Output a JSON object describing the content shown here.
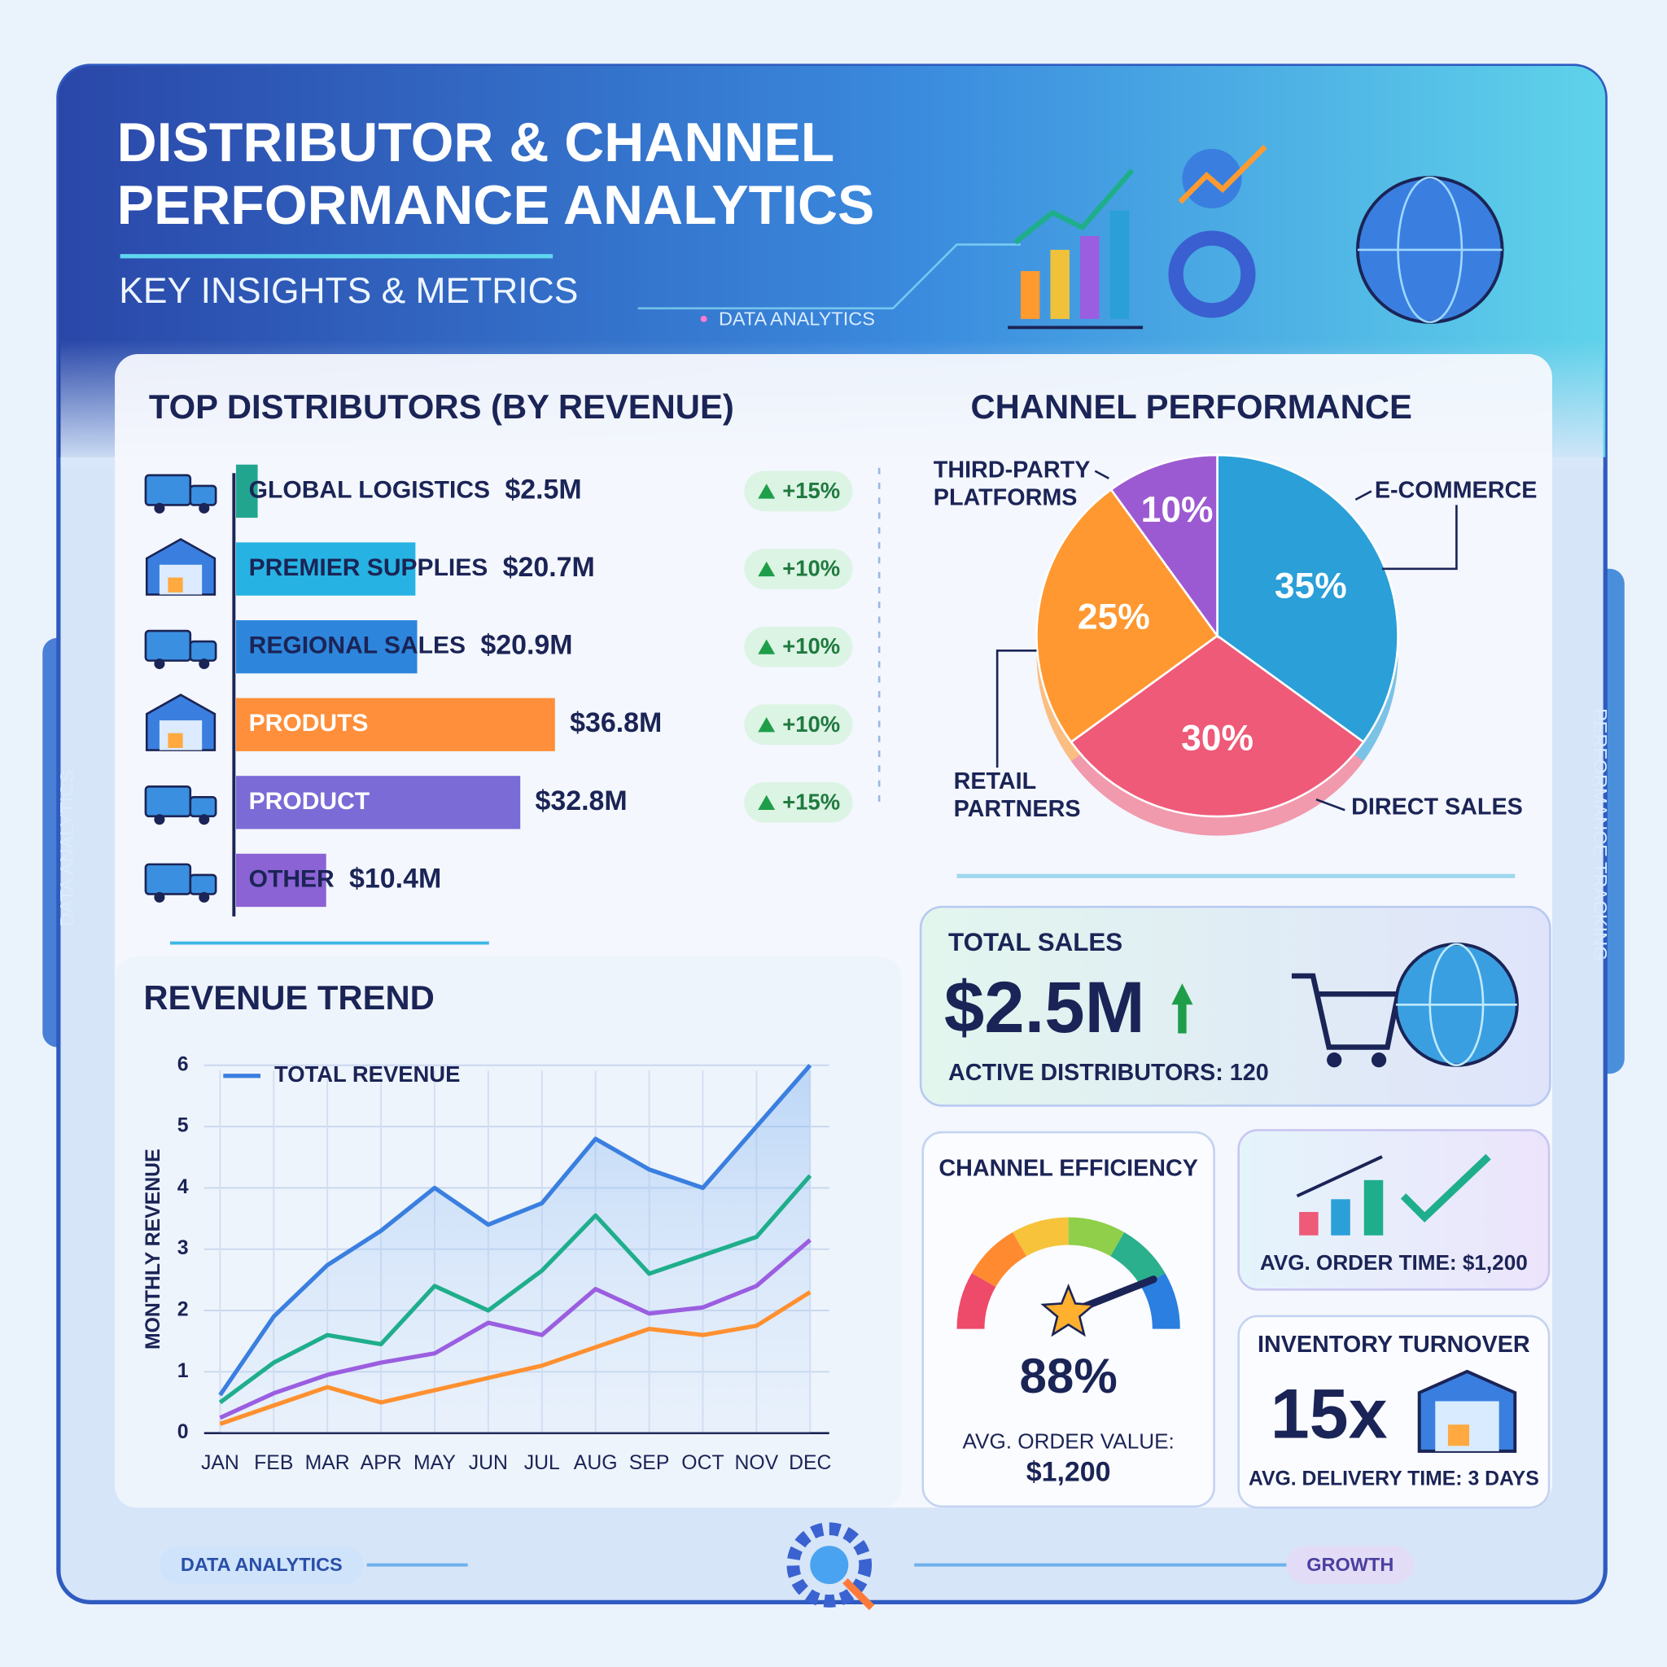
{
  "header": {
    "title_lines": [
      "DISTRIBUTOR & CHANNEL",
      "PERFORMANCE ANALYTICS"
    ],
    "subtitle": "KEY INSIGHTS & METRICS",
    "tag": "DATA ANALYTICS"
  },
  "side_labels": {
    "left": "DATA ANALYTICS",
    "right": "PERFORMANCE TRACKING"
  },
  "footer": {
    "left_pill": "DATA ANALYTICS",
    "right_pill": "GROWTH"
  },
  "chart_data": [
    {
      "type": "bar",
      "title": "TOP DISTRIBUTORS (BY REVENUE)",
      "orientation": "horizontal",
      "categories": [
        "GLOBAL LOGISTICS",
        "PREMIER SUPPLIES",
        "REGIONAL SALES",
        "PRODUTS",
        "PRODUCT",
        "OTHER"
      ],
      "values": [
        2.5,
        20.7,
        20.9,
        36.8,
        32.8,
        10.4
      ],
      "value_labels": [
        "$2.5M",
        "$20.7M",
        "$20.9M",
        "$36.8M",
        "$32.8M",
        "$10.4M"
      ],
      "changes": [
        "+15%",
        "+10%",
        "+10%",
        "+10%",
        "+15%",
        null
      ],
      "colors": [
        "#22a58f",
        "#26b3e3",
        "#2d86dc",
        "#ff8f3a",
        "#7a6bd6",
        "#8b63d4"
      ]
    },
    {
      "type": "pie",
      "title": "CHANNEL PERFORMANCE",
      "categories": [
        "E-COMMERCE",
        "DIRECT SALES",
        "RETAIL PARTNERS",
        "THIRD-PARTY PLATFORMS"
      ],
      "values": [
        35,
        30,
        25,
        10
      ],
      "value_labels": [
        "35%",
        "30%",
        "25%",
        "10%"
      ],
      "colors": [
        "#2a9fd8",
        "#ee5a78",
        "#ff9830",
        "#9c5ad2"
      ]
    },
    {
      "type": "line",
      "title": "REVENUE TREND",
      "y_label": "MONTHLY REVENUE",
      "categories": [
        "JAN",
        "FEB",
        "MAR",
        "APR",
        "MAY",
        "JUN",
        "JUL",
        "AUG",
        "SEP",
        "OCT",
        "NOV",
        "DEC"
      ],
      "ylim": [
        0,
        6
      ],
      "yticks": [
        0,
        1,
        2,
        3,
        4,
        5,
        6
      ],
      "grid": true,
      "legend": "upper left",
      "series": [
        {
          "name": "TOTAL REVENUE",
          "color": "#3a7fe0",
          "values": [
            0.62,
            1.9,
            2.74,
            3.3,
            4.0,
            3.4,
            3.75,
            4.8,
            4.3,
            4.0,
            5.0,
            6.0
          ]
        },
        {
          "color": "#1fae8c",
          "values": [
            0.5,
            1.15,
            1.6,
            1.45,
            2.4,
            2.0,
            2.65,
            3.55,
            2.6,
            2.9,
            3.2,
            4.2
          ]
        },
        {
          "color": "#9b5ee0",
          "values": [
            0.25,
            0.65,
            0.95,
            1.15,
            1.3,
            1.8,
            1.6,
            2.35,
            1.95,
            2.05,
            2.4,
            3.15
          ]
        },
        {
          "color": "#ff9030",
          "values": [
            0.15,
            0.45,
            0.75,
            0.5,
            0.7,
            0.9,
            1.1,
            1.4,
            1.7,
            1.6,
            1.75,
            2.3
          ]
        }
      ]
    },
    {
      "type": "gauge",
      "title": "CHANNEL EFFICIENCY",
      "values": [
        88
      ],
      "value_labels": [
        "88%"
      ],
      "note_lines": [
        "AVG. ORDER VALUE:",
        "$1,200"
      ]
    }
  ],
  "kpis": {
    "total_sales": {
      "label": "TOTAL SALES",
      "value": "$2.5M",
      "note": "ACTIVE DISTRIBUTORS: 120"
    },
    "order_time": {
      "note": "AVG. ORDER TIME: $1,200"
    },
    "inventory": {
      "label": "INVENTORY TURNOVER",
      "value": "15x",
      "note": "AVG. DELIVERY TIME: 3 DAYS"
    }
  }
}
